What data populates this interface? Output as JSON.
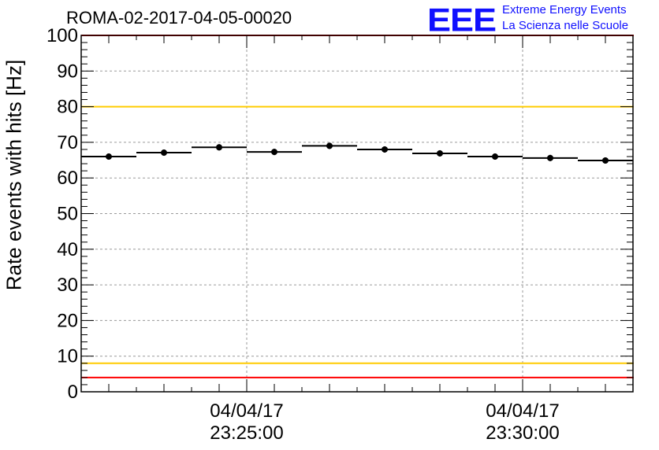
{
  "header": {
    "title": "ROMA-02-2017-04-05-00020",
    "logo_text": "EEE",
    "logo_line1": "Extreme Energy Events",
    "logo_line2": "La Scienza nelle Scuole"
  },
  "chart_data": {
    "type": "scatter",
    "ylabel": "Rate events with hits [Hz]",
    "xlabel": "",
    "ylim": [
      0,
      100
    ],
    "yticks": [
      0,
      10,
      20,
      30,
      40,
      50,
      60,
      70,
      80,
      90,
      100
    ],
    "xlim": [
      "2017-04-04 23:22:00",
      "2017-04-04 23:32:00"
    ],
    "xticks": [
      {
        "time": "2017-04-04 23:25:00",
        "label_date": "04/04/17",
        "label_time": "23:25:00"
      },
      {
        "time": "2017-04-04 23:30:00",
        "label_date": "04/04/17",
        "label_time": "23:30:00"
      }
    ],
    "bin_width_seconds": 60,
    "grid": true,
    "points": [
      {
        "time": "2017-04-04 23:22:30",
        "value": 66.0
      },
      {
        "time": "2017-04-04 23:23:30",
        "value": 67.1
      },
      {
        "time": "2017-04-04 23:24:30",
        "value": 68.6
      },
      {
        "time": "2017-04-04 23:25:30",
        "value": 67.3
      },
      {
        "time": "2017-04-04 23:26:30",
        "value": 69.0
      },
      {
        "time": "2017-04-04 23:27:30",
        "value": 68.0
      },
      {
        "time": "2017-04-04 23:28:30",
        "value": 66.9
      },
      {
        "time": "2017-04-04 23:29:30",
        "value": 66.0
      },
      {
        "time": "2017-04-04 23:30:30",
        "value": 65.6
      },
      {
        "time": "2017-04-04 23:31:30",
        "value": 64.9
      }
    ],
    "reference_lines": [
      {
        "value": 100,
        "color": "#ff0000"
      },
      {
        "value": 80,
        "color": "#ffcc00"
      },
      {
        "value": 8,
        "color": "#ffcc00"
      },
      {
        "value": 4,
        "color": "#ff0000"
      }
    ],
    "marker_color": "#000000"
  }
}
